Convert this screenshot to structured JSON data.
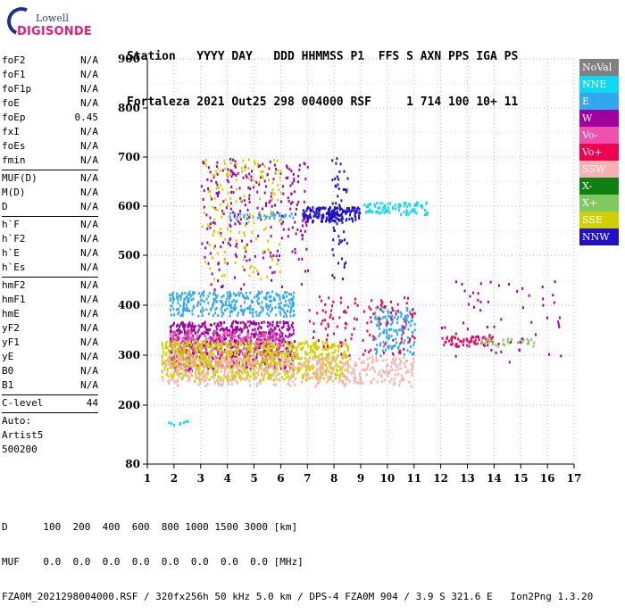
{
  "logo": {
    "line1": "Lowell",
    "line2": "DIGISONDE"
  },
  "header": {
    "line1": "Station   YYYY DAY   DDD HHMMSS P1  FFS S AXN PPS IGA PS",
    "line2": "Fortaleza 2021 Out25 298 004000 RSF     1 714 100 10+ 11"
  },
  "params_groups": [
    [
      [
        "foF2",
        "N/A"
      ],
      [
        "foF1",
        "N/A"
      ],
      [
        "foF1p",
        "N/A"
      ],
      [
        "foE",
        "N/A"
      ],
      [
        "foEp",
        "0.45"
      ],
      [
        "fxI",
        "N/A"
      ],
      [
        "foEs",
        "N/A"
      ],
      [
        "fmin",
        "N/A"
      ]
    ],
    [
      [
        "MUF(D)",
        "N/A"
      ],
      [
        "M(D)",
        "N/A"
      ],
      [
        "D",
        "N/A"
      ]
    ],
    [
      [
        "h`F",
        "N/A"
      ],
      [
        "h`F2",
        "N/A"
      ],
      [
        "h`E",
        "N/A"
      ],
      [
        "h`Es",
        "N/A"
      ]
    ],
    [
      [
        "hmF2",
        "N/A"
      ],
      [
        "hmF1",
        "N/A"
      ],
      [
        "hmE",
        "N/A"
      ],
      [
        "yF2",
        "N/A"
      ],
      [
        "yF1",
        "N/A"
      ],
      [
        "yE",
        "N/A"
      ],
      [
        "B0",
        "N/A"
      ],
      [
        "B1",
        "N/A"
      ]
    ],
    [
      [
        "C-level",
        "44"
      ]
    ]
  ],
  "params_extra": [
    "Auto:",
    "Artist5",
    "500200"
  ],
  "legend": [
    {
      "label": "NoVal",
      "color": "#808080"
    },
    {
      "label": "NNE",
      "color": "#10d8f0"
    },
    {
      "label": "E",
      "color": "#30a8f0"
    },
    {
      "label": "W",
      "color": "#a000a0"
    },
    {
      "label": "Vo-",
      "color": "#f050b0"
    },
    {
      "label": "Vo+",
      "color": "#f00050"
    },
    {
      "label": "SSW",
      "color": "#f8b0b0"
    },
    {
      "label": "X-",
      "color": "#108010"
    },
    {
      "label": "X+",
      "color": "#80c860"
    },
    {
      "label": "SSE",
      "color": "#d0d000"
    },
    {
      "label": "NNW",
      "color": "#2010c8"
    }
  ],
  "chart_data": {
    "type": "scatter",
    "xlim": [
      1,
      17
    ],
    "ylim": [
      80,
      900
    ],
    "x_ticks": [
      1,
      2,
      3,
      4,
      5,
      6,
      7,
      8,
      9,
      10,
      11,
      12,
      13,
      14,
      15,
      16,
      17
    ],
    "y_ticks": [
      80,
      200,
      300,
      400,
      500,
      600,
      700,
      800,
      900
    ],
    "grid": true,
    "clusters": [
      {
        "series": "NNW",
        "x": [
          6.8,
          9.0
        ],
        "y": [
          570,
          600
        ],
        "n": 180
      },
      {
        "series": "NNW",
        "x": [
          7.9,
          8.5
        ],
        "y": [
          450,
          700
        ],
        "n": 60
      },
      {
        "series": "NNE",
        "x": [
          9.0,
          11.5
        ],
        "y": [
          585,
          610
        ],
        "n": 90
      },
      {
        "series": "E",
        "x": [
          4.0,
          6.5
        ],
        "y": [
          575,
          590
        ],
        "n": 40
      },
      {
        "series": "E",
        "x": [
          1.8,
          6.5
        ],
        "y": [
          380,
          430
        ],
        "n": 320
      },
      {
        "series": "W",
        "x": [
          1.8,
          6.5
        ],
        "y": [
          270,
          370
        ],
        "n": 700
      },
      {
        "series": "Vo-",
        "x": [
          1.8,
          6.0
        ],
        "y": [
          280,
          350
        ],
        "n": 300
      },
      {
        "series": "SSE",
        "x": [
          1.5,
          8.5
        ],
        "y": [
          250,
          330
        ],
        "n": 900
      },
      {
        "series": "SSW",
        "x": [
          1.5,
          11.0
        ],
        "y": [
          240,
          300
        ],
        "n": 500
      },
      {
        "series": "Vo+",
        "x": [
          12.0,
          14.0
        ],
        "y": [
          320,
          340
        ],
        "n": 60
      },
      {
        "series": "X+",
        "x": [
          13.5,
          15.5
        ],
        "y": [
          320,
          335
        ],
        "n": 30
      },
      {
        "series": "W",
        "x": [
          3.0,
          7.0
        ],
        "y": [
          430,
          700
        ],
        "n": 250
      },
      {
        "series": "SSE",
        "x": [
          3.0,
          6.0
        ],
        "y": [
          450,
          700
        ],
        "n": 150
      },
      {
        "series": "E",
        "x": [
          9.5,
          11.0
        ],
        "y": [
          300,
          400
        ],
        "n": 150
      },
      {
        "series": "W",
        "x": [
          12.0,
          16.5
        ],
        "y": [
          280,
          450
        ],
        "n": 60
      },
      {
        "series": "Vo+",
        "x": [
          7.0,
          11.0
        ],
        "y": [
          300,
          420
        ],
        "n": 120
      },
      {
        "series": "NNE",
        "x": [
          1.5,
          2.5
        ],
        "y": [
          160,
          170
        ],
        "n": 8
      }
    ]
  },
  "footer": {
    "line1": "D      100  200  400  600  800 1000 1500 3000 [km]",
    "line2": "MUF    0.0  0.0  0.0  0.0  0.0  0.0  0.0  0.0 [MHz]",
    "line3": "FZA0M_2021298004000.RSF / 320fx256h 50 kHz 5.0 km / DPS-4 FZA0M 904 / 3.9 S 321.6 E   Ion2Png 1.3.20"
  }
}
